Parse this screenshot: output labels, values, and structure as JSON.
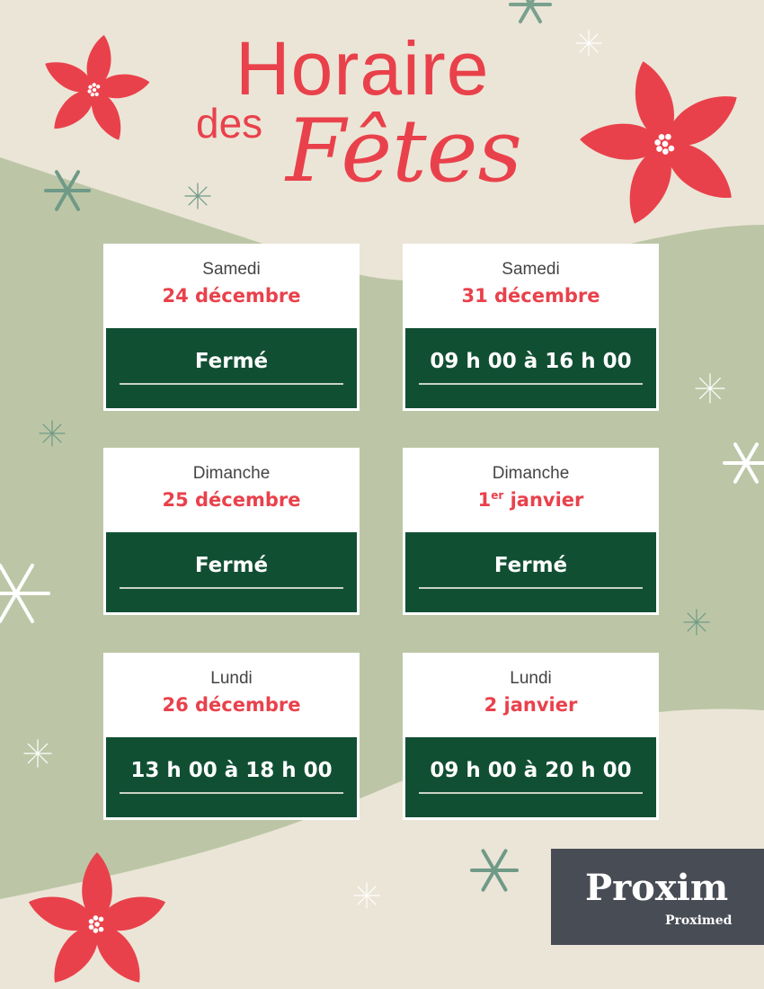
{
  "title": {
    "line1": "Horaire",
    "line2a": "des",
    "line2b": "Fêtes"
  },
  "colors": {
    "background": "#ebe5d7",
    "green_shape": "#bcc6a6",
    "accent_red": "#e9414b",
    "card_green": "#114f33"
  },
  "schedule": [
    {
      "day": "Samedi",
      "date": "24 décembre",
      "hours": "Fermé"
    },
    {
      "day": "Samedi",
      "date": "31 décembre",
      "hours": "09 h 00 à 16 h 00"
    },
    {
      "day": "Dimanche",
      "date": "25 décembre",
      "hours": "Fermé"
    },
    {
      "day": "Dimanche",
      "date_num": "1",
      "date_sup": "er",
      "date_rest": " janvier",
      "hours": "Fermé"
    },
    {
      "day": "Lundi",
      "date": "26 décembre",
      "hours": "13 h 00 à 18 h 00"
    },
    {
      "day": "Lundi",
      "date": "2 janvier",
      "hours": "09 h 00 à 20 h 00"
    }
  ],
  "logo": {
    "brand": "Proxim",
    "sub_brand": "Proximed"
  }
}
